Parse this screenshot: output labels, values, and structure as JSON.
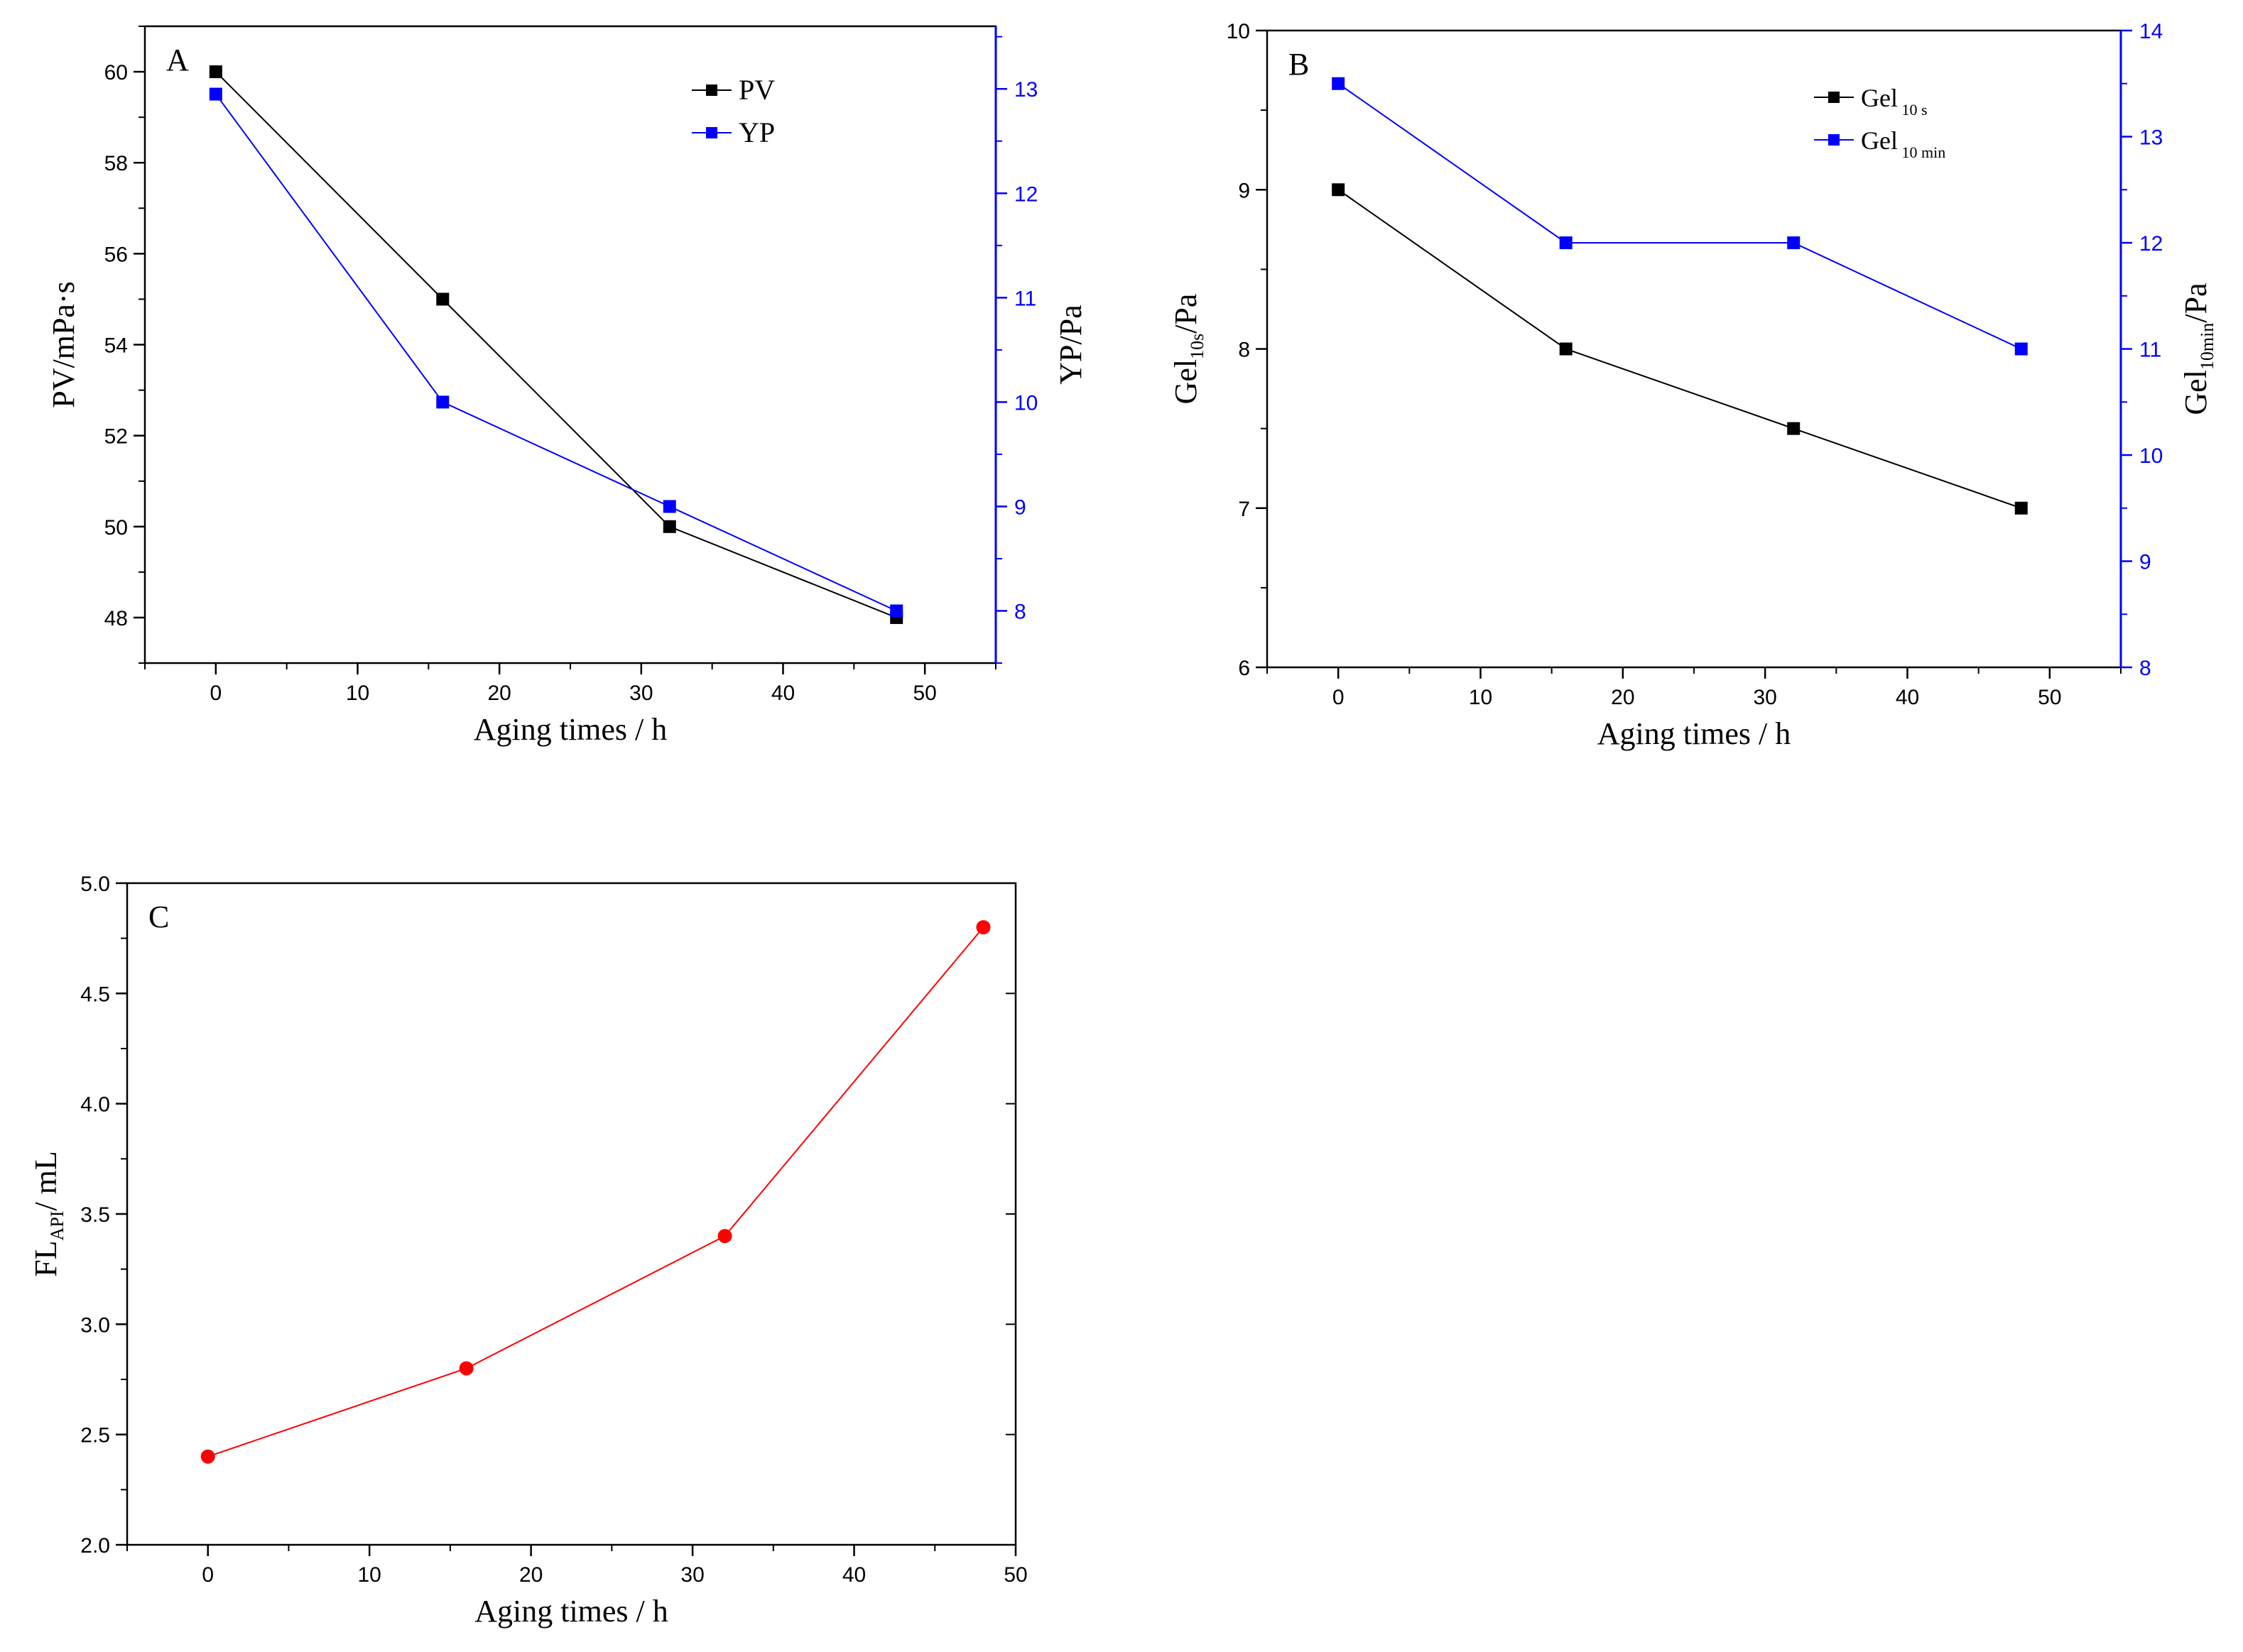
{
  "chart_data": [
    {
      "id": "A",
      "type": "line",
      "panel_label": "A",
      "xlabel": "Aging times / h",
      "ylabel_left": "PV/mPa·s",
      "ylabel_right": "YP/Pa",
      "xlim": [
        -5,
        55
      ],
      "ylim_left": [
        47,
        61
      ],
      "ylim_right": [
        7.5,
        13.6
      ],
      "xticks": [
        0,
        10,
        20,
        30,
        40,
        50
      ],
      "yticks_left": [
        48,
        50,
        52,
        54,
        56,
        58,
        60
      ],
      "yticks_right": [
        8,
        9,
        10,
        11,
        12,
        13
      ],
      "legend_position": "top-right",
      "series": [
        {
          "name": "PV",
          "axis": "left",
          "color": "#000000",
          "marker": "square",
          "x": [
            0,
            16,
            32,
            48
          ],
          "values": [
            60,
            55,
            50,
            48
          ]
        },
        {
          "name": "YP",
          "axis": "right",
          "color": "#0000ff",
          "marker": "square",
          "x": [
            0,
            16,
            32,
            48
          ],
          "values": [
            12.95,
            10,
            9,
            8
          ]
        }
      ]
    },
    {
      "id": "B",
      "type": "line",
      "panel_label": "B",
      "xlabel": "Aging times / h",
      "ylabel_left": {
        "main": "Gel",
        "sub": "10s",
        "tail": "/Pa"
      },
      "ylabel_right": {
        "main": "Gel",
        "sub": "10min",
        "tail": "/Pa"
      },
      "xlim": [
        -5,
        55
      ],
      "ylim_left": [
        6,
        10
      ],
      "ylim_right": [
        8,
        14
      ],
      "xticks": [
        0,
        10,
        20,
        30,
        40,
        50
      ],
      "yticks_left": [
        6,
        7,
        8,
        9,
        10
      ],
      "yticks_right": [
        8,
        9,
        10,
        11,
        12,
        13,
        14
      ],
      "legend_position": "top-right",
      "series": [
        {
          "name": "Gel",
          "sub": "10 s",
          "axis": "left",
          "color": "#000000",
          "marker": "square",
          "x": [
            0,
            16,
            32,
            48
          ],
          "values": [
            9,
            8,
            7.5,
            7
          ]
        },
        {
          "name": "Gel",
          "sub": "10 min",
          "axis": "right",
          "color": "#0000ff",
          "marker": "square",
          "x": [
            0,
            16,
            32,
            48
          ],
          "values": [
            13.5,
            12,
            12,
            11
          ]
        }
      ]
    },
    {
      "id": "C",
      "type": "line",
      "panel_label": "C",
      "xlabel": "Aging times / h",
      "ylabel_left": {
        "main": "FL",
        "sub": "API",
        "tail": "/ mL"
      },
      "xlim": [
        -5,
        50
      ],
      "ylim_left": [
        2.0,
        5.0
      ],
      "xticks": [
        0,
        10,
        20,
        30,
        40,
        50
      ],
      "yticks_left": [
        "2.0",
        "2.5",
        "3.0",
        "3.5",
        "4.0",
        "4.5",
        "5.0"
      ],
      "series": [
        {
          "name": "FL_API",
          "axis": "left",
          "color": "#ff0000",
          "marker": "circle",
          "x": [
            0,
            16,
            32,
            48
          ],
          "values": [
            2.4,
            2.8,
            3.4,
            4.8
          ]
        }
      ]
    }
  ]
}
